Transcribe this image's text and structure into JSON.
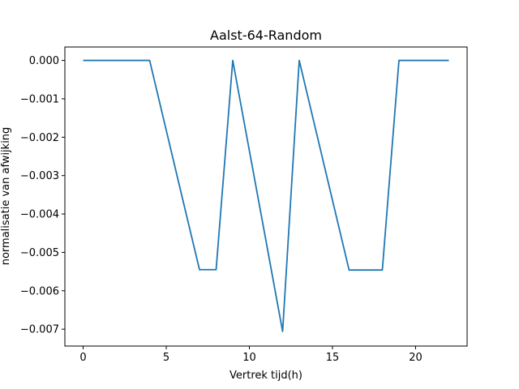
{
  "chart_data": {
    "type": "line",
    "title": "Aalst-64-Random",
    "xlabel": "Vertrek tijd(h)",
    "ylabel": "normalisatie van afwijking",
    "xlim": [
      -1.1,
      23.1
    ],
    "ylim": [
      -0.00744,
      0.00035
    ],
    "xticks": [
      0,
      5,
      10,
      15,
      20
    ],
    "xtick_labels": [
      "0",
      "5",
      "10",
      "15",
      "20"
    ],
    "yticks": [
      0.0,
      -0.001,
      -0.002,
      -0.003,
      -0.004,
      -0.005,
      -0.006,
      -0.007
    ],
    "ytick_labels": [
      "0.000",
      "−0.001",
      "−0.002",
      "−0.003",
      "−0.004",
      "−0.005",
      "−0.006",
      "−0.007"
    ],
    "grid": false,
    "series": [
      {
        "color": "#1f77b4",
        "x": [
          0,
          1,
          2,
          3,
          4,
          5,
          6,
          7,
          8,
          9,
          10,
          11,
          12,
          13,
          14,
          15,
          16,
          17,
          18,
          19,
          20,
          21,
          22
        ],
        "y": [
          0.0,
          0.0,
          0.0,
          0.0,
          0.0,
          -0.00182,
          -0.00364,
          -0.00545,
          -0.00545,
          0.0,
          -0.00235,
          -0.0047,
          -0.00706,
          0.0,
          -0.00182,
          -0.00364,
          -0.00546,
          -0.00546,
          -0.00546,
          0.0,
          0.0,
          0.0,
          0.0
        ]
      }
    ]
  }
}
